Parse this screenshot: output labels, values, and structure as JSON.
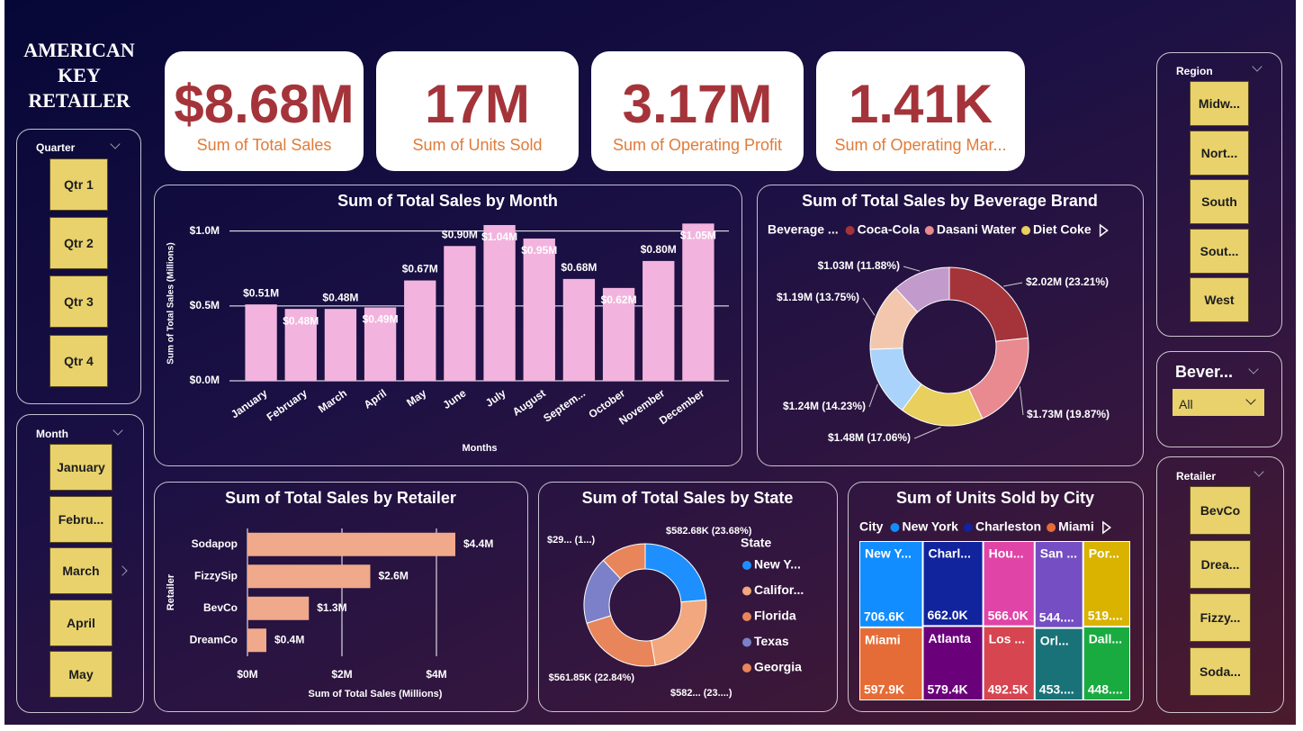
{
  "title_lines": [
    "AMERICAN",
    "KEY",
    "RETAILER"
  ],
  "kpis": [
    {
      "value": "$8.68M",
      "label": "Sum of Total Sales"
    },
    {
      "value": "17M",
      "label": "Sum of Units Sold"
    },
    {
      "value": "3.17M",
      "label": "Sum of Operating Profit"
    },
    {
      "value": "1.41K",
      "label": "Sum of Operating Mar..."
    }
  ],
  "slicers": {
    "quarter": {
      "title": "Quarter",
      "items": [
        "Qtr 1",
        "Qtr 2",
        "Qtr 3",
        "Qtr 4"
      ]
    },
    "month": {
      "title": "Month",
      "items": [
        "January",
        "Febru...",
        "March",
        "April",
        "May"
      ]
    },
    "region": {
      "title": "Region",
      "items": [
        "Midw...",
        "Nort...",
        "South",
        "Sout...",
        "West"
      ]
    },
    "beverage": {
      "title": "Bever...",
      "selected": "All"
    },
    "retailer": {
      "title": "Retailer",
      "items": [
        "BevCo",
        "Drea...",
        "Fizzy...",
        "Soda..."
      ]
    }
  },
  "chart_data": [
    {
      "type": "bar",
      "title": "Sum of Total Sales by Month",
      "x_label": "Months",
      "y_label": "Sum of Total Sales (Millions)",
      "categories": [
        "January",
        "February",
        "March",
        "April",
        "May",
        "June",
        "July",
        "August",
        "Septem...",
        "October",
        "November",
        "December"
      ],
      "values": [
        0.51,
        0.48,
        0.48,
        0.49,
        0.67,
        0.9,
        1.04,
        0.95,
        0.68,
        0.62,
        0.8,
        1.05
      ],
      "value_labels": [
        "$0.51M",
        "$0.48M",
        "$0.48M",
        "$0.49M",
        "$0.67M",
        "$0.90M",
        "$1.04M",
        "$0.95M",
        "$0.68M",
        "$0.62M",
        "$0.80M",
        "$1.05M"
      ],
      "color": "#f2b4de",
      "ylim": [
        0,
        1.1
      ],
      "yticks": [
        {
          "value": 0,
          "label": "$0.0M"
        },
        {
          "value": 0.5,
          "label": "$0.5M"
        },
        {
          "value": 1,
          "label": "$1.0M"
        }
      ],
      "grid": true
    },
    {
      "type": "pie",
      "title": "Sum of Total Sales by Beverage Brand",
      "legend_title": "Beverage ...",
      "categories": [
        "Coca-Cola",
        "Dasani Water",
        "Diet Coke",
        null,
        null,
        null
      ],
      "values": [
        2.02,
        1.73,
        1.48,
        1.24,
        1.19,
        1.03
      ],
      "value_labels": [
        "$2.02M (23.21%)",
        "$1.73M (19.87%)",
        "$1.48M (17.06%)",
        "$1.24M (14.23%)",
        "$1.19M (13.75%)",
        "$1.03M (11.88%)"
      ],
      "colors": [
        "#a4343a",
        "#e88a90",
        "#e8cf5e",
        "#a9d3fb",
        "#f3c7ae",
        "#c29acb"
      ]
    },
    {
      "type": "hbar",
      "title": "Sum of Total Sales by Retailer",
      "x_label": "Sum of Total Sales (Millions)",
      "y_label": "Retailer",
      "categories": [
        "Sodapop",
        "FizzySip",
        "BevCo",
        "DreamCo"
      ],
      "values": [
        4.4,
        2.6,
        1.3,
        0.4
      ],
      "value_labels": [
        "$4.4M",
        "$2.6M",
        "$1.3M",
        "$0.4M"
      ],
      "color": "#f0a98a",
      "xlim": [
        0,
        4.6
      ],
      "xticks": [
        {
          "value": 0,
          "label": "$0M"
        },
        {
          "value": 2,
          "label": "$2M"
        },
        {
          "value": 4,
          "label": "$4M"
        }
      ],
      "grid": true
    },
    {
      "type": "pie",
      "title": "Sum of Total Sales by State",
      "legend_title": "State",
      "categories": [
        "New Y...",
        "Califor...",
        "Florida",
        "Texas",
        "Georgia"
      ],
      "values": [
        582.68,
        582.4,
        561.85,
        438.5,
        295
      ],
      "value_labels": [
        "$582.68K (23.68%)",
        "$582... (23....)",
        "$561.85K (22.84%)",
        null,
        "$29... (1...)"
      ],
      "colors": [
        "#1e8fff",
        "#f2a77f",
        "#e8855a",
        "#7b80c8",
        "#e8855a"
      ]
    },
    {
      "type": "treemap",
      "title": "Sum of Units Sold by City",
      "legend_title": "City",
      "legend": [
        {
          "name": "New York",
          "color": "#118dff"
        },
        {
          "name": "Charleston",
          "color": "#12239e"
        },
        {
          "name": "Miami",
          "color": "#e66c37"
        }
      ],
      "categories": [
        "New Y...",
        "Charl...",
        "Miami",
        "Atlanta",
        "Hou...",
        "San ...",
        "Por...",
        "Los ...",
        "Orl...",
        "Dall..."
      ],
      "values": [
        706.6,
        662.0,
        597.9,
        579.4,
        566.0,
        544.3,
        519.5,
        492.5,
        453.2,
        448.4
      ],
      "value_labels": [
        "706.6K",
        "662.0K",
        "597.9K",
        "579.4K",
        "566.0K",
        "544....",
        "519....",
        "492.5K",
        "453....",
        "448...."
      ],
      "colors": [
        "#118dff",
        "#12239e",
        "#e66c37",
        "#6b007b",
        "#e044a7",
        "#744ec2",
        "#d9b300",
        "#d64550",
        "#197278",
        "#1aab40"
      ]
    }
  ]
}
